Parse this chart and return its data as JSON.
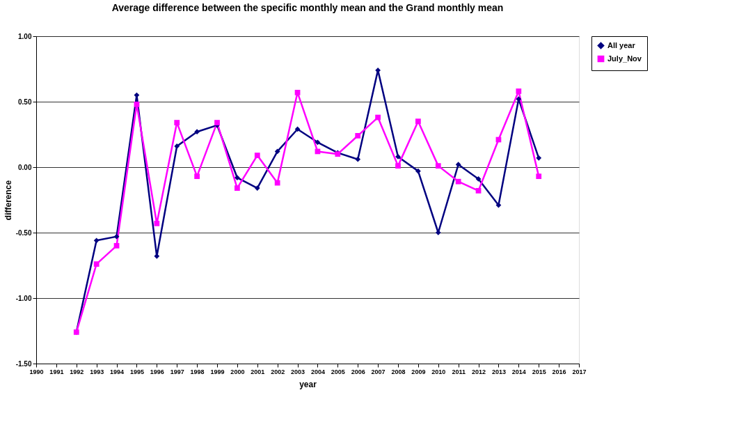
{
  "chart_data": {
    "type": "line",
    "title": "Average difference between the specific monthly mean and the Grand monthly mean",
    "xlabel": "year",
    "ylabel": "difference",
    "x": [
      1992,
      1993,
      1994,
      1995,
      1996,
      1997,
      1998,
      1999,
      2000,
      2001,
      2002,
      2003,
      2004,
      2005,
      2006,
      2007,
      2008,
      2009,
      2010,
      2011,
      2012,
      2013,
      2014,
      2015
    ],
    "series": [
      {
        "name": "All year",
        "color": "#000080",
        "marker": "diamond",
        "values": [
          -1.26,
          -0.56,
          -0.53,
          0.55,
          -0.68,
          0.16,
          0.27,
          0.32,
          -0.08,
          -0.16,
          0.12,
          0.29,
          0.19,
          0.11,
          0.06,
          0.74,
          0.08,
          -0.03,
          -0.5,
          0.02,
          -0.09,
          -0.29,
          0.52,
          0.07
        ]
      },
      {
        "name": "July_Nov",
        "color": "#ff00ff",
        "marker": "square",
        "values": [
          -1.26,
          -0.74,
          -0.6,
          0.48,
          -0.43,
          0.34,
          -0.07,
          0.34,
          -0.16,
          0.09,
          -0.12,
          0.57,
          0.12,
          0.1,
          0.24,
          0.38,
          0.01,
          0.35,
          0.01,
          -0.11,
          -0.18,
          0.21,
          0.58,
          -0.07
        ]
      }
    ],
    "xlim": [
      1990,
      2017
    ],
    "xticks": [
      1990,
      1991,
      1992,
      1993,
      1994,
      1995,
      1996,
      1997,
      1998,
      1999,
      2000,
      2001,
      2002,
      2003,
      2004,
      2005,
      2006,
      2007,
      2008,
      2009,
      2010,
      2011,
      2012,
      2013,
      2014,
      2015,
      2016,
      2017
    ],
    "ylim": [
      -1.5,
      1.0
    ],
    "yticks": [
      {
        "value": -1.5,
        "label": "-1.50"
      },
      {
        "value": -1.0,
        "label": "-1.00"
      },
      {
        "value": -0.5,
        "label": "-0.50"
      },
      {
        "value": 0,
        "label": "0.00"
      },
      {
        "value": 0.5,
        "label": "0.50"
      },
      {
        "value": 1.0,
        "label": "1.00"
      }
    ],
    "grid": "y",
    "legend": "right",
    "line_style": "solid"
  }
}
